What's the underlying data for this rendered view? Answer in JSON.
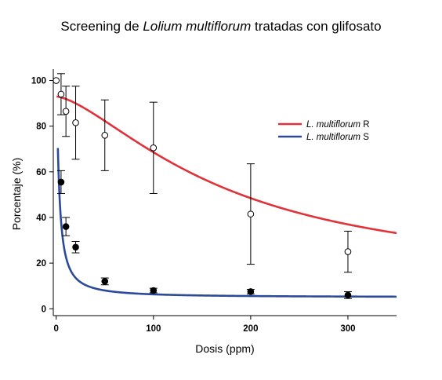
{
  "chart_data": {
    "type": "scatter",
    "title": {
      "prefix": "Screening de ",
      "species": "Lolium multiflorum",
      "suffix": " tratadas con glifosato"
    },
    "xlabel": "Dosis (ppm)",
    "ylabel": "Porcentaje (%)",
    "xlim": [
      -3,
      350
    ],
    "ylim": [
      -3,
      105
    ],
    "xticks": [
      0,
      100,
      200,
      300
    ],
    "yticks": [
      0,
      20,
      40,
      60,
      80,
      100
    ],
    "grid": false,
    "legend_position": "top-right",
    "series": [
      {
        "name": "L. multiflorum R",
        "name_species": "L. multiflorum",
        "name_suffix": " R",
        "color": "#e03238",
        "marker": "open-circle",
        "points": [
          {
            "x": 0,
            "y": 100,
            "err": null
          },
          {
            "x": 5,
            "y": 94,
            "err": 9
          },
          {
            "x": 10,
            "y": 86.5,
            "err": 11
          },
          {
            "x": 20,
            "y": 81.5,
            "err": 16
          },
          {
            "x": 50,
            "y": 76,
            "err": 15.5
          },
          {
            "x": 100,
            "y": 70.5,
            "err": 20
          },
          {
            "x": 200,
            "y": 41.5,
            "err": 22
          },
          {
            "x": 300,
            "y": 25,
            "err": 9
          }
        ],
        "curve": {
          "model": "log-logistic",
          "bottom": 12,
          "top": 93,
          "ed50": 175,
          "slope": 1.5
        }
      },
      {
        "name": "L. multiflorum S",
        "name_species": "L. multiflorum",
        "name_suffix": " S",
        "color": "#2c4a9a",
        "marker": "filled-circle",
        "points": [
          {
            "x": 5,
            "y": 55.5,
            "err": 5
          },
          {
            "x": 10,
            "y": 36,
            "err": 4
          },
          {
            "x": 20,
            "y": 27,
            "err": 2.5
          },
          {
            "x": 50,
            "y": 12,
            "err": 1.5
          },
          {
            "x": 100,
            "y": 8,
            "err": 1
          },
          {
            "x": 200,
            "y": 7.5,
            "err": 1
          },
          {
            "x": 300,
            "y": 6,
            "err": 1.5
          }
        ],
        "curve": {
          "model": "log-logistic",
          "bottom": 5,
          "top": 108,
          "ed50": 2.7,
          "slope": 1.2
        }
      }
    ]
  }
}
